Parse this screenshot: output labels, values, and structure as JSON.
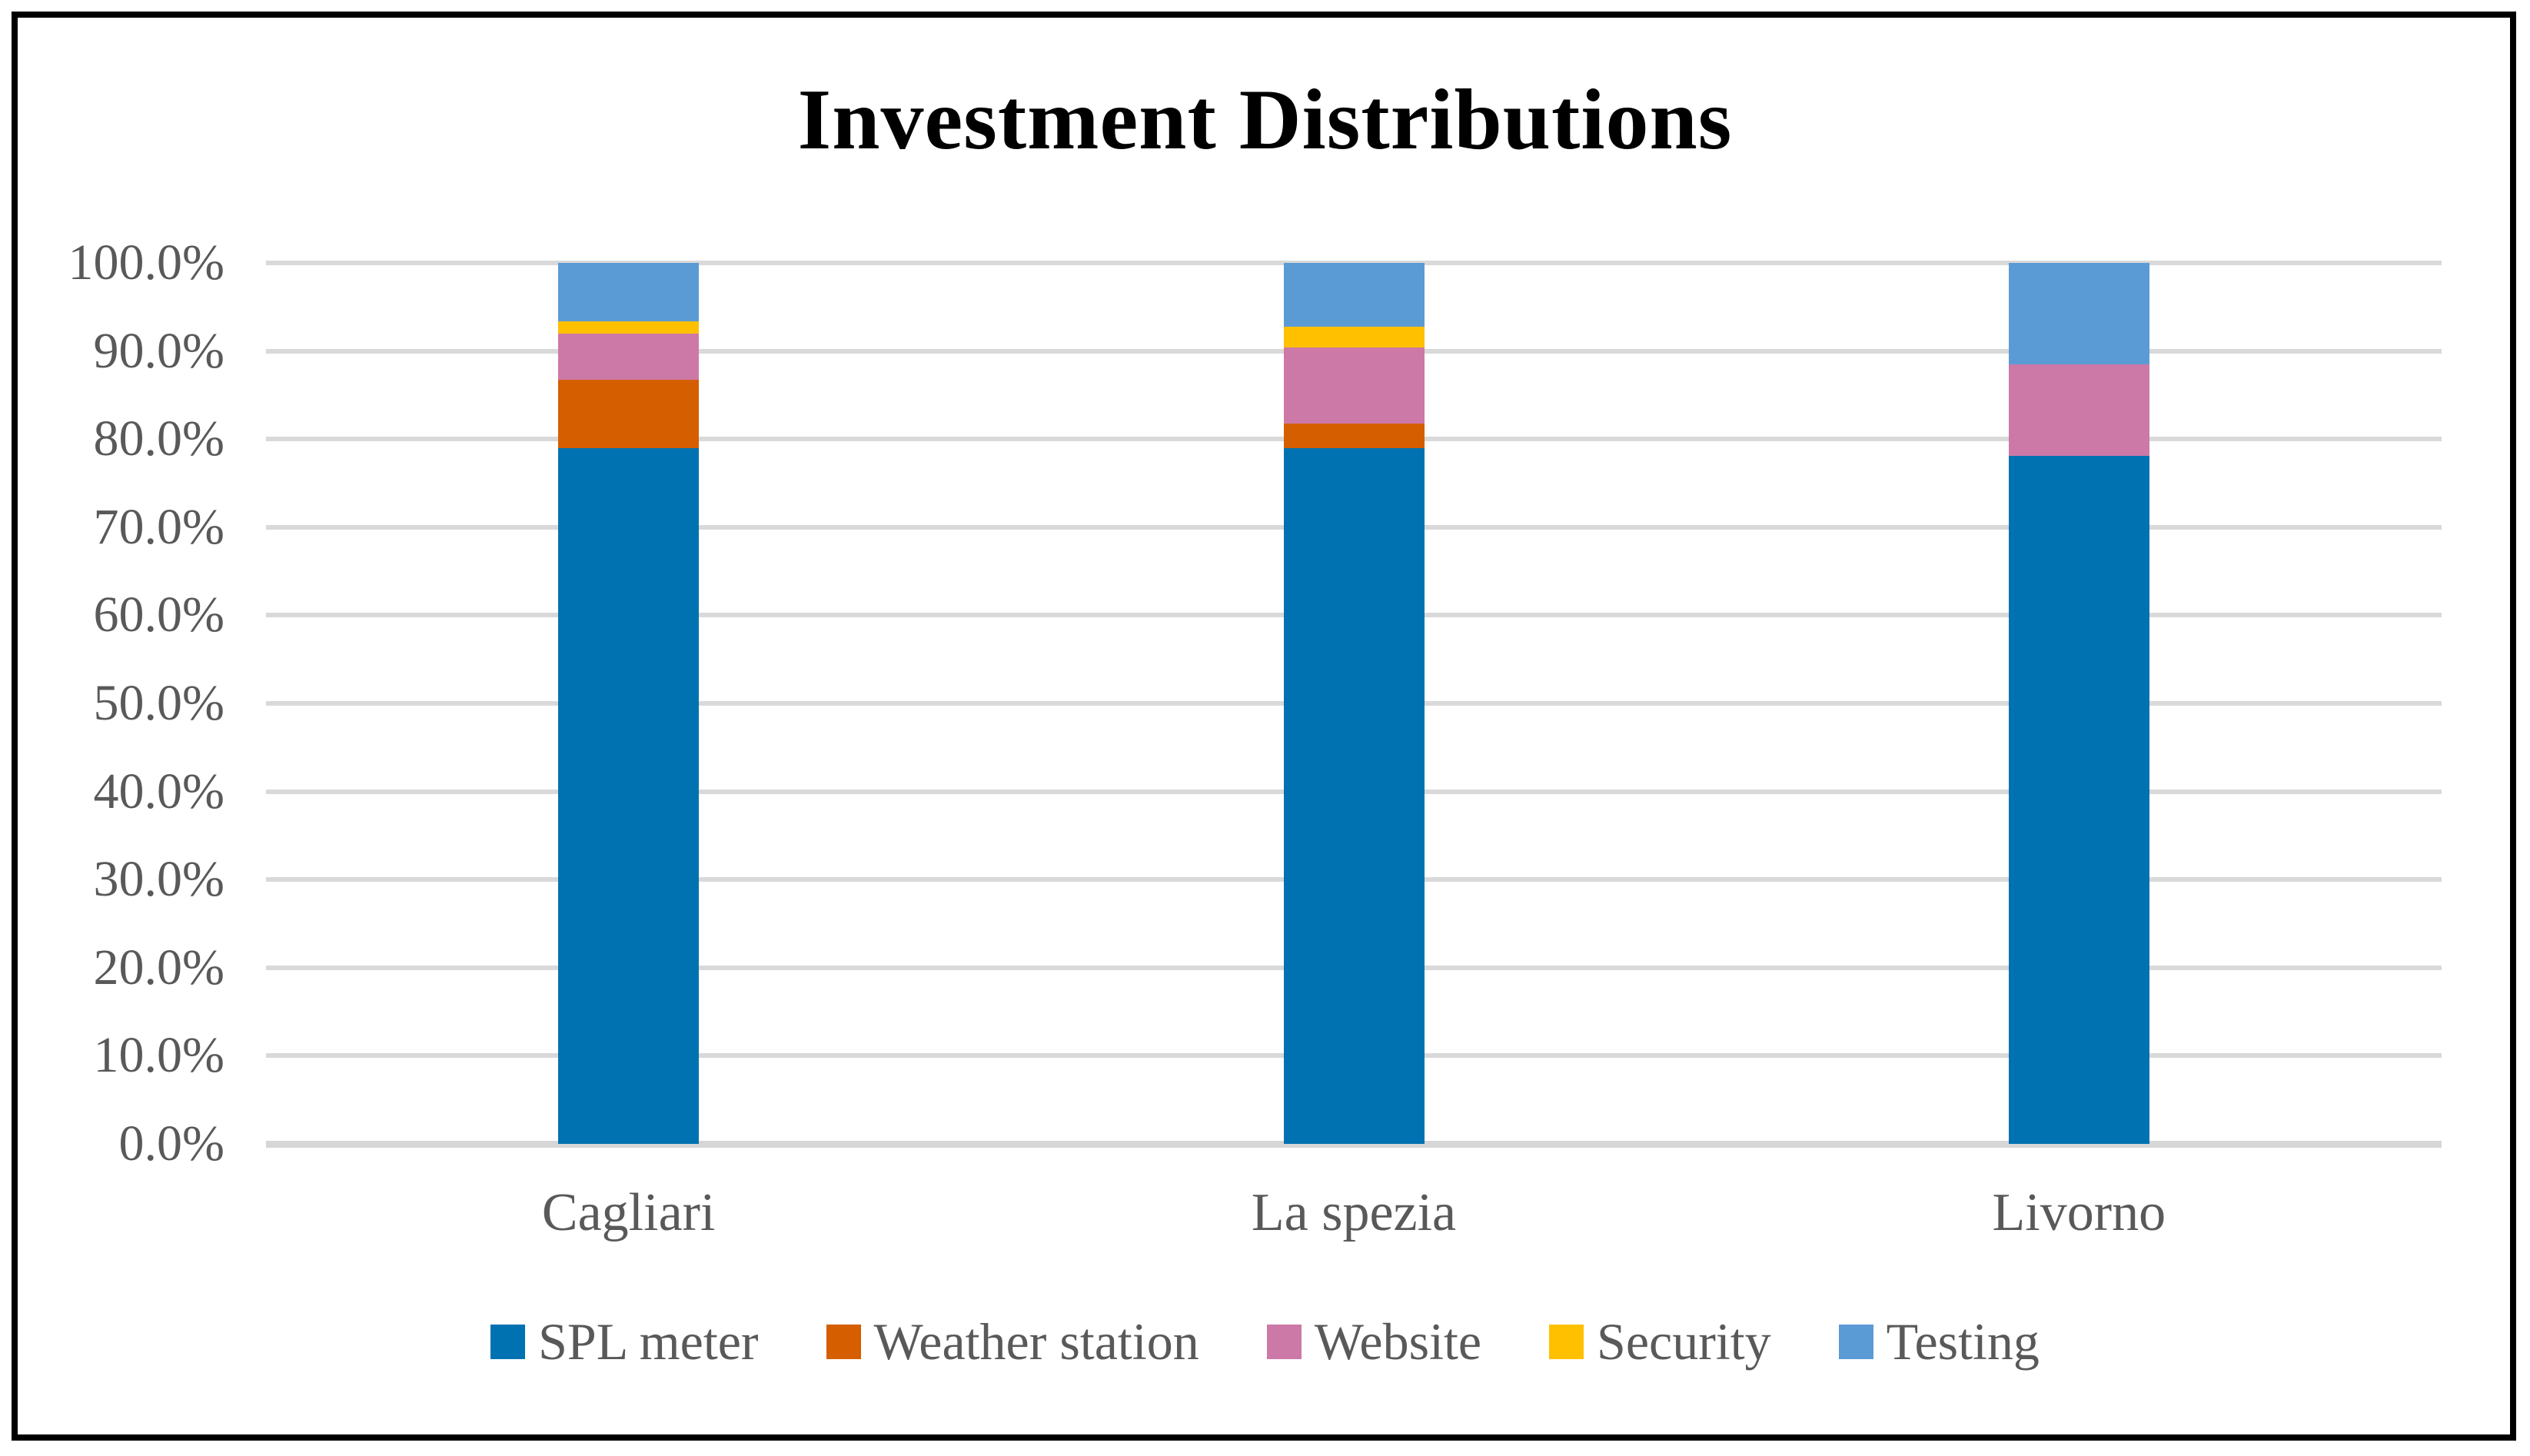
{
  "chart_data": {
    "type": "bar",
    "stacked": true,
    "title": "Investment Distributions",
    "categories": [
      "Cagliari",
      "La spezia",
      "Livorno"
    ],
    "series": [
      {
        "name": "SPL meter",
        "color": "#0072B2",
        "values": [
          79.0,
          79.0,
          78.1
        ]
      },
      {
        "name": "Weather station",
        "color": "#D55E00",
        "values": [
          7.7,
          2.8,
          0.0
        ]
      },
      {
        "name": "Website",
        "color": "#CC79A7",
        "values": [
          5.3,
          8.6,
          10.4
        ]
      },
      {
        "name": "Security",
        "color": "#FFC000",
        "values": [
          1.4,
          2.4,
          0.0
        ]
      },
      {
        "name": "Testing",
        "color": "#5B9BD5",
        "values": [
          6.6,
          7.2,
          11.5
        ]
      }
    ],
    "ylim": [
      0,
      100
    ],
    "ytick_step": 10,
    "ytick_labels": [
      "0.0%",
      "10.0%",
      "20.0%",
      "30.0%",
      "40.0%",
      "50.0%",
      "60.0%",
      "70.0%",
      "80.0%",
      "90.0%",
      "100.0%"
    ],
    "grid": true,
    "legend_position": "bottom",
    "gridline_color": "#D9D9D9",
    "axis_text_color": "#595959",
    "title_color": "#000000",
    "frame_color": "#000000",
    "background_color": "#FFFFFF"
  }
}
